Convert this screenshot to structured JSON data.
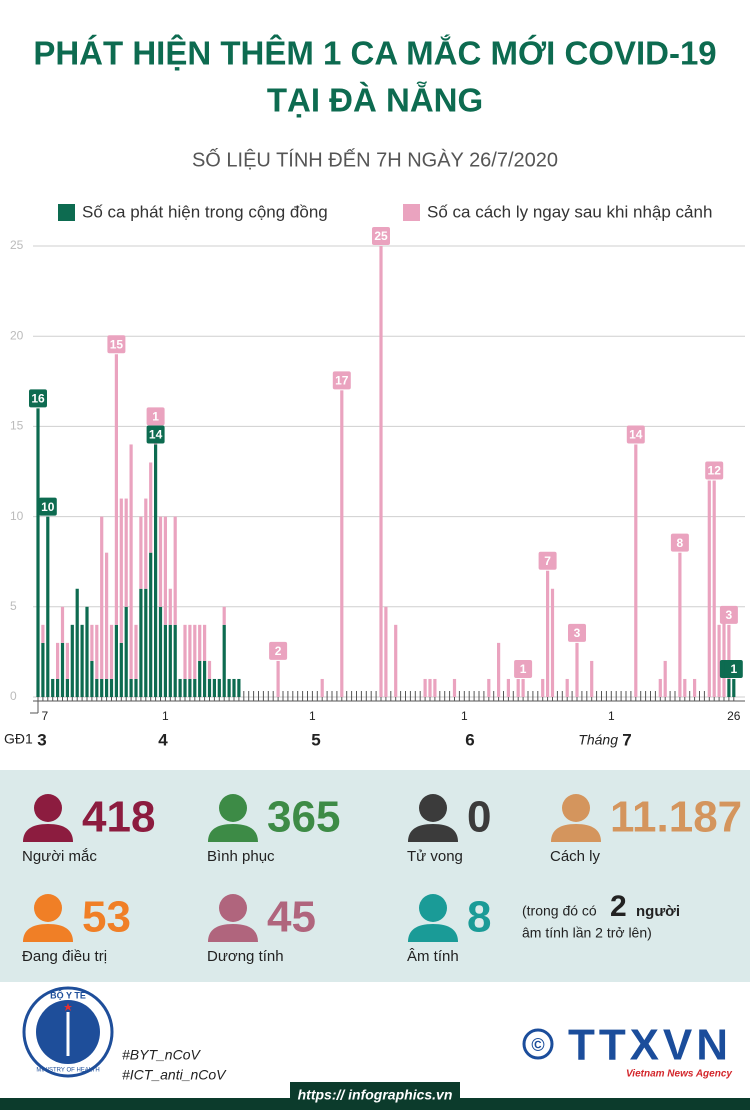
{
  "header": {
    "title_lines": [
      "PHÁT HIỆN THÊM 1 CA MẮC MỚI COVID-19",
      "TẠI ĐÀ NẴNG"
    ],
    "subtitle": "SỐ LIỆU TÍNH ĐẾN 7H NGÀY 26/7/2020"
  },
  "chart_data": {
    "type": "bar",
    "stacked": true,
    "grid": true,
    "legend": "top",
    "ylim": [
      0,
      25
    ],
    "yticks": [
      0,
      5,
      10,
      15,
      20,
      25
    ],
    "period_label": "GĐ1",
    "months": [
      "3",
      "4",
      "5",
      "6",
      "7"
    ],
    "month_prefix": "Tháng",
    "categories": [
      null,
      "7",
      null,
      null,
      null,
      null,
      null,
      null,
      null,
      null,
      null,
      null,
      null,
      null,
      null,
      null,
      null,
      null,
      null,
      null,
      null,
      null,
      null,
      null,
      null,
      null,
      "1",
      null,
      null,
      null,
      null,
      null,
      null,
      null,
      null,
      null,
      null,
      null,
      null,
      null,
      null,
      null,
      null,
      null,
      null,
      null,
      null,
      null,
      null,
      null,
      null,
      null,
      null,
      null,
      null,
      null,
      "1",
      null,
      null,
      null,
      null,
      null,
      null,
      null,
      null,
      null,
      null,
      null,
      null,
      null,
      null,
      null,
      null,
      null,
      null,
      null,
      null,
      null,
      null,
      null,
      null,
      null,
      null,
      null,
      null,
      null,
      null,
      "1",
      null,
      null,
      null,
      null,
      null,
      null,
      null,
      null,
      null,
      null,
      null,
      null,
      null,
      null,
      null,
      null,
      null,
      null,
      null,
      null,
      null,
      null,
      null,
      null,
      null,
      null,
      null,
      null,
      null,
      "1",
      null,
      null,
      null,
      null,
      null,
      null,
      null,
      null,
      null,
      null,
      null,
      null,
      null,
      null,
      null,
      null,
      null,
      null,
      null,
      null,
      null,
      null,
      null,
      null,
      "26"
    ],
    "series": [
      {
        "name": "Số ca phát hiện trong cộng đồng",
        "color": "#0d6b50",
        "values": [
          16,
          3,
          10,
          1,
          1,
          3,
          1,
          4,
          6,
          4,
          5,
          2,
          1,
          1,
          1,
          1,
          4,
          3,
          5,
          1,
          1,
          6,
          6,
          8,
          14,
          5,
          4,
          4,
          4,
          1,
          1,
          1,
          1,
          2,
          2,
          1,
          1,
          1,
          4,
          1,
          1,
          1,
          0,
          0,
          0,
          0,
          0,
          0,
          0,
          0,
          0,
          0,
          0,
          0,
          0,
          0,
          0,
          0,
          0,
          0,
          0,
          0,
          0,
          0,
          0,
          0,
          0,
          0,
          0,
          0,
          0,
          0,
          0,
          0,
          0,
          0,
          0,
          0,
          0,
          0,
          0,
          0,
          0,
          0,
          0,
          0,
          0,
          0,
          0,
          0,
          0,
          0,
          0,
          0,
          0,
          0,
          0,
          0,
          0,
          0,
          0,
          0,
          0,
          0,
          0,
          0,
          0,
          0,
          0,
          0,
          0,
          0,
          0,
          0,
          0,
          0,
          0,
          0,
          0,
          0,
          0,
          0,
          0,
          0,
          0,
          0,
          0,
          0,
          0,
          0,
          0,
          0,
          0,
          0,
          0,
          0,
          0,
          0,
          0,
          0,
          0,
          1,
          1
        ],
        "value_labels": [
          16,
          null,
          10,
          null,
          null,
          null,
          null,
          null,
          null,
          null,
          null,
          null,
          null,
          null,
          null,
          null,
          null,
          null,
          null,
          null,
          null,
          null,
          null,
          null,
          14,
          null,
          null,
          null,
          null,
          null,
          null,
          null,
          null,
          null,
          null,
          null,
          null,
          null,
          null,
          null,
          null,
          null,
          null,
          null,
          null,
          null,
          null,
          null,
          null,
          null,
          null,
          null,
          null,
          null,
          null,
          null,
          null,
          null,
          null,
          null,
          null,
          null,
          null,
          null,
          null,
          null,
          null,
          null,
          null,
          null,
          null,
          null,
          null,
          null,
          null,
          null,
          null,
          null,
          null,
          null,
          null,
          null,
          null,
          null,
          null,
          null,
          null,
          null,
          null,
          null,
          null,
          null,
          null,
          null,
          null,
          null,
          null,
          null,
          null,
          null,
          null,
          null,
          null,
          null,
          null,
          null,
          null,
          null,
          null,
          null,
          null,
          null,
          null,
          null,
          null,
          null,
          null,
          null,
          null,
          null,
          null,
          null,
          null,
          null,
          null,
          null,
          null,
          null,
          null,
          null,
          null,
          null,
          null,
          null,
          null,
          null,
          null,
          null,
          null,
          null,
          null,
          1,
          1
        ]
      },
      {
        "name": "Số ca cách ly ngay sau khi nhập cảnh",
        "color": "#eaa3bf",
        "values": [
          0,
          1,
          0,
          0,
          2,
          2,
          2,
          0,
          0,
          0,
          0,
          2,
          3,
          9,
          7,
          3,
          15,
          8,
          6,
          13,
          3,
          4,
          5,
          5,
          1,
          5,
          6,
          2,
          6,
          0,
          3,
          3,
          3,
          2,
          2,
          1,
          0,
          0,
          1,
          0,
          0,
          0,
          0,
          0,
          0,
          0,
          0,
          0,
          0,
          2,
          0,
          0,
          0,
          0,
          0,
          0,
          0,
          0,
          1,
          0,
          0,
          0,
          17,
          0,
          0,
          0,
          0,
          0,
          0,
          0,
          25,
          5,
          0,
          4,
          0,
          0,
          0,
          0,
          0,
          1,
          1,
          1,
          0,
          0,
          0,
          1,
          0,
          0,
          0,
          0,
          0,
          0,
          1,
          0,
          3,
          0,
          1,
          0,
          1,
          1,
          0,
          0,
          0,
          1,
          7,
          6,
          0,
          0,
          1,
          0,
          3,
          0,
          0,
          2,
          0,
          0,
          0,
          0,
          0,
          0,
          0,
          0,
          14,
          0,
          0,
          0,
          0,
          1,
          2,
          0,
          0,
          8,
          1,
          0,
          1,
          0,
          0,
          12,
          12,
          4,
          5,
          3,
          0
        ],
        "value_labels": [
          null,
          null,
          null,
          null,
          null,
          null,
          null,
          null,
          null,
          null,
          null,
          null,
          null,
          null,
          null,
          null,
          15,
          null,
          null,
          null,
          null,
          null,
          null,
          null,
          1,
          null,
          null,
          null,
          null,
          null,
          null,
          null,
          null,
          null,
          null,
          null,
          null,
          null,
          null,
          null,
          null,
          null,
          null,
          null,
          null,
          null,
          null,
          null,
          null,
          2,
          null,
          null,
          null,
          null,
          null,
          null,
          null,
          null,
          null,
          null,
          null,
          null,
          17,
          null,
          null,
          null,
          null,
          null,
          null,
          null,
          25,
          null,
          null,
          null,
          null,
          null,
          null,
          null,
          null,
          null,
          null,
          null,
          null,
          null,
          null,
          null,
          null,
          null,
          null,
          null,
          null,
          null,
          null,
          null,
          null,
          null,
          null,
          null,
          null,
          1,
          null,
          null,
          null,
          null,
          7,
          null,
          null,
          null,
          null,
          null,
          3,
          null,
          null,
          null,
          null,
          null,
          null,
          null,
          null,
          null,
          null,
          null,
          14,
          null,
          null,
          null,
          null,
          null,
          null,
          null,
          null,
          8,
          null,
          null,
          null,
          null,
          null,
          null,
          12,
          null,
          null,
          3,
          null
        ]
      }
    ]
  },
  "stats": [
    {
      "value": 418,
      "label": "Người mắc",
      "color": "#8c1c3f"
    },
    {
      "value": 365,
      "label": "Bình phục",
      "color": "#3d8b46"
    },
    {
      "value": 0,
      "label": "Tử vong",
      "color": "#3b3b3b"
    },
    {
      "value": "11.187",
      "label": "Cách ly",
      "color": "#d4955d"
    },
    {
      "value": 53,
      "label": "Đang điều trị",
      "color": "#f07f26"
    },
    {
      "value": 45,
      "label": "Dương tính",
      "color": "#b0657d"
    },
    {
      "value": 8,
      "label": "Âm tính",
      "color": "#1a9b97"
    }
  ],
  "note": {
    "before": "(trong đó có",
    "number": 2,
    "after": "người",
    "line2": "âm tính lần 2 trở lên)"
  },
  "footer": {
    "logo_top": "BỘ Y TẾ",
    "logo_bottom": "MINISTRY OF HEALTH",
    "hashtags": [
      "#BYT_nCoV",
      "#ICT_anti_nCoV"
    ],
    "copyright": "©",
    "agency": "TTXVN",
    "agency_en": "Vietnam News Agency",
    "url": "https:// infographics.vn"
  }
}
